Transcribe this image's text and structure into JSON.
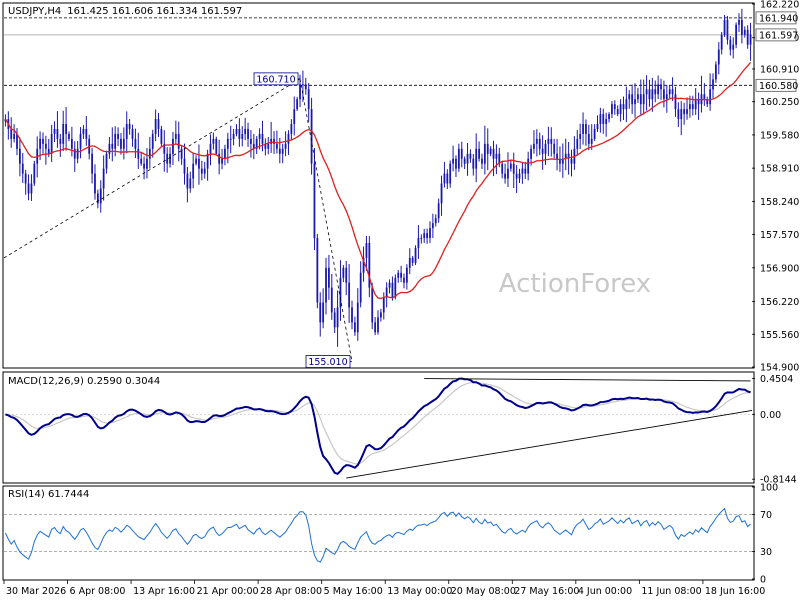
{
  "chart_data": {
    "type": "candlestick",
    "symbol": "USDJPY",
    "timeframe": "H4",
    "title": "USDJPY,H4",
    "ohlc_readout": "161.425 161.606 161.334 161.597",
    "watermark": "ActionForex",
    "colors": {
      "candle": "#1a1aa8",
      "ma": "#e02020",
      "macd": "#00008b",
      "macd_signal": "#c8c8c8",
      "rsi": "#1e6fd9",
      "level_line": "#000000",
      "trend_line": "#000000"
    },
    "x_axis": {
      "labels": [
        "30 Mar 2026",
        "6 Apr 08:00",
        "13 Apr 16:00",
        "21 Apr 00:00",
        "28 Apr 08:00",
        "5 May 16:00",
        "13 May 00:00",
        "20 May 08:00",
        "27 May 16:00",
        "4 Jun 00:00",
        "11 Jun 08:00",
        "18 Jun 16:00"
      ],
      "bars_per_label": 22
    },
    "price_panel": {
      "y_range": [
        154.9,
        162.22
      ],
      "tick_labels": [
        "162.220",
        "161.540",
        "160.910",
        "160.250",
        "159.580",
        "158.910",
        "158.240",
        "157.570",
        "156.900",
        "156.220",
        "155.560",
        "154.900"
      ],
      "series_key": "close",
      "moving_average": "MA (red)",
      "closes": [
        159.9,
        159.7,
        159.5,
        159.6,
        159.3,
        159.0,
        158.8,
        158.6,
        158.4,
        158.6,
        159.0,
        159.3,
        159.5,
        159.4,
        159.3,
        159.2,
        159.6,
        159.7,
        159.5,
        159.4,
        159.8,
        159.6,
        159.5,
        159.3,
        159.1,
        159.3,
        159.6,
        159.7,
        159.5,
        159.2,
        158.8,
        158.4,
        158.2,
        158.5,
        158.9,
        159.2,
        159.4,
        159.3,
        159.6,
        159.5,
        159.3,
        159.5,
        159.8,
        159.7,
        159.5,
        159.3,
        159.1,
        159.0,
        158.9,
        159.1,
        159.3,
        159.6,
        159.9,
        159.7,
        159.4,
        159.2,
        159.0,
        159.2,
        159.5,
        159.6,
        159.3,
        159.1,
        158.8,
        158.5,
        158.7,
        159.0,
        159.1,
        158.9,
        158.8,
        158.9,
        159.2,
        159.4,
        159.5,
        159.2,
        159.0,
        159.1,
        159.3,
        159.5,
        159.5,
        159.6,
        159.7,
        159.5,
        159.6,
        159.7,
        159.5,
        159.4,
        159.3,
        159.5,
        159.6,
        159.4,
        159.3,
        159.4,
        159.5,
        159.4,
        159.3,
        159.2,
        159.3,
        159.4,
        159.6,
        159.8,
        160.1,
        160.3,
        160.6,
        160.6,
        160.5,
        160.1,
        159.0,
        157.5,
        156.2,
        155.8,
        156.2,
        156.9,
        156.5,
        156.0,
        155.7,
        156.1,
        156.7,
        156.9,
        156.6,
        156.1,
        155.8,
        155.6,
        156.2,
        156.8,
        157.1,
        157.4,
        156.5,
        155.8,
        155.6,
        155.9,
        156.0,
        156.3,
        156.5,
        156.6,
        156.3,
        156.7,
        156.8,
        156.7,
        156.6,
        156.9,
        157.1,
        157.0,
        157.3,
        157.5,
        157.5,
        157.6,
        157.5,
        157.7,
        157.8,
        157.9,
        158.2,
        158.6,
        158.8,
        158.6,
        159.0,
        159.1,
        158.9,
        159.3,
        159.1,
        159.0,
        159.2,
        159.1,
        158.9,
        159.3,
        159.1,
        159.0,
        159.4,
        159.2,
        159.3,
        159.1,
        159.2,
        159.0,
        158.8,
        158.7,
        158.9,
        159.0,
        158.8,
        158.7,
        158.8,
        158.9,
        158.8,
        159.1,
        159.3,
        159.4,
        159.5,
        159.3,
        159.2,
        159.4,
        159.5,
        159.4,
        159.2,
        159.1,
        159.0,
        159.1,
        159.2,
        159.1,
        159.0,
        159.3,
        159.5,
        159.6,
        159.8,
        159.6,
        159.4,
        159.5,
        159.7,
        159.8,
        160.0,
        159.8,
        159.9,
        160.0,
        160.2,
        160.1,
        160.0,
        160.2,
        160.1,
        160.3,
        160.4,
        160.2,
        160.3,
        160.4,
        160.2,
        160.4,
        160.5,
        160.3,
        160.5,
        160.4,
        160.6,
        160.5,
        160.3,
        160.4,
        160.5,
        160.4,
        160.1,
        159.9,
        160.1,
        160.0,
        160.1,
        160.2,
        160.1,
        160.3,
        160.2,
        160.4,
        160.3,
        160.2,
        160.5,
        160.7,
        161.0,
        161.3,
        161.6,
        161.9,
        161.5,
        161.3,
        161.4,
        161.8,
        161.9,
        161.6,
        161.7,
        161.4,
        161.6
      ]
    },
    "annotations": [
      {
        "type": "label",
        "text": "160.710",
        "value": 160.71
      },
      {
        "type": "label",
        "text": "155.010",
        "value": 155.01
      },
      {
        "type": "level",
        "text": "161.940",
        "value": 161.94,
        "style": "dashed"
      },
      {
        "type": "level",
        "text": "161.597",
        "value": 161.597,
        "style": "solid",
        "current_price": true
      },
      {
        "type": "level",
        "text": "160.580",
        "value": 160.58,
        "style": "dashed"
      }
    ],
    "macd_panel": {
      "title": "MACD(12,26,9) 0.2590 0.3044",
      "y_range": [
        -0.85,
        0.52
      ],
      "tick_labels": [
        "0.4504",
        "0.00",
        "-0.8144"
      ],
      "tick_values": [
        0.4504,
        0.0,
        -0.8144
      ]
    },
    "rsi_panel": {
      "title": "RSI(14) 61.7444",
      "y_range": [
        0,
        100
      ],
      "tick_labels": [
        "100",
        "70",
        "30",
        "0"
      ],
      "tick_values": [
        100,
        70,
        30,
        0
      ],
      "levels": [
        70,
        30
      ]
    }
  }
}
